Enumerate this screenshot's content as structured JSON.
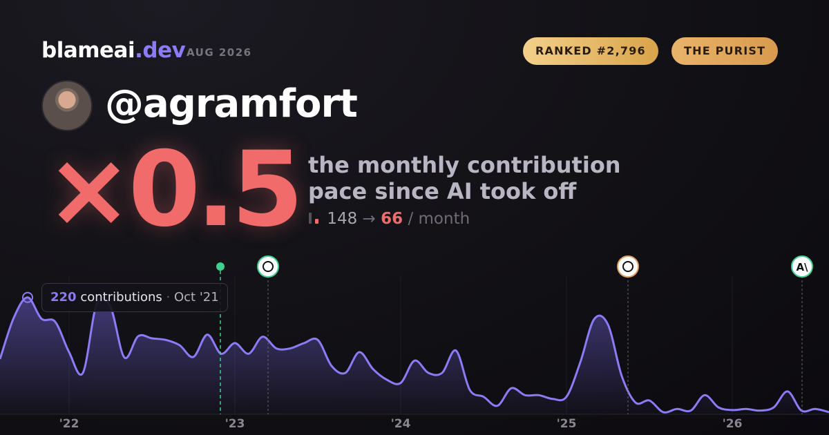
{
  "header": {
    "brand": "blameai",
    "brand_tld": ".dev",
    "issue": "AUG 2026",
    "badges": [
      "RANKED #2,796",
      "THE PURIST"
    ]
  },
  "profile": {
    "handle": "@agramfort",
    "multiplier": "×0.5",
    "description": [
      "the monthly contribution",
      "pace since AI took off"
    ],
    "before": 148,
    "arrow": "→",
    "after": 66,
    "unit": "/ month"
  },
  "tooltip": {
    "value": 220,
    "unit": "contributions",
    "date": "Oct '21"
  },
  "chart_data": {
    "type": "area",
    "color": "#8b7cf6",
    "categories": [
      null,
      null,
      null,
      null,
      null,
      "'22",
      null,
      null,
      null,
      null,
      null,
      null,
      null,
      null,
      null,
      null,
      null,
      "'23",
      null,
      null,
      null,
      null,
      null,
      null,
      null,
      null,
      null,
      null,
      null,
      "'24",
      null,
      null,
      null,
      null,
      null,
      null,
      null,
      null,
      null,
      null,
      null,
      "'25",
      null,
      null,
      null,
      null,
      null,
      null,
      null,
      null,
      null,
      null,
      null,
      "'26",
      null,
      null,
      null,
      null,
      null,
      null,
      null
    ],
    "values": [
      104,
      182,
      220,
      180,
      174,
      117,
      78,
      208,
      202,
      107,
      147,
      143,
      140,
      130,
      108,
      150,
      114,
      134,
      114,
      146,
      124,
      124,
      134,
      140,
      91,
      78,
      117,
      85,
      65,
      59,
      101,
      78,
      78,
      120,
      46,
      33,
      16,
      49,
      36,
      36,
      29,
      33,
      98,
      179,
      169,
      72,
      22,
      26,
      4,
      10,
      7,
      36,
      13,
      8,
      10,
      7,
      13,
      43,
      7,
      10,
      4
    ],
    "ylim": [
      0,
      260
    ]
  }
}
